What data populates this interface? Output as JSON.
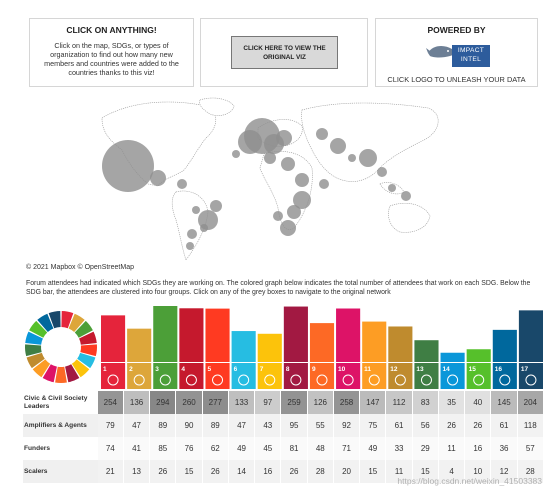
{
  "click_box": {
    "title": "CLICK ON ANYTHING!",
    "text": "Click on the map, SDGs, or types of organization to find out how many new members and countries were added to the countries thanks to this viz!"
  },
  "view_box": {
    "button_label": "CLICK HERE TO VIEW THE ORIGINAL VIZ"
  },
  "powered_box": {
    "title": "POWERED BY",
    "logo_text": "IMPACT INTEL",
    "caption": "CLICK LOGO TO UNLEASH YOUR DATA",
    "logo_color": "#2d5c9c"
  },
  "map": {
    "attribution": "© 2021 Mapbox © OpenStreetMap",
    "bubble_color": "#8f8f8f"
  },
  "description": "Forum attendees had indicated which SDGs they are working on. The colored graph below indicates the total number of attendees that work on each SDG.  Below the SDG bar, the attendees are clustered into four groups. Click on any of the grey boxes to navigate to the original network",
  "chart_data": {
    "type": "bar",
    "categories": [
      "1",
      "2",
      "3",
      "4",
      "5",
      "6",
      "7",
      "8",
      "9",
      "10",
      "11",
      "12",
      "13",
      "14",
      "15",
      "16",
      "17"
    ],
    "values": [
      428,
      306,
      514,
      493,
      490,
      284,
      259,
      509,
      357,
      491,
      371,
      326,
      200,
      85,
      117,
      295,
      474
    ],
    "colors": [
      "#e5243b",
      "#dda63a",
      "#4c9f38",
      "#c5192d",
      "#ff3a21",
      "#26bde2",
      "#fcc30b",
      "#a21942",
      "#fd6925",
      "#dd1367",
      "#fd9d24",
      "#bf8b2e",
      "#3f7e44",
      "#0a97d9",
      "#56c02b",
      "#00689d",
      "#19486a"
    ]
  },
  "table": {
    "rows": [
      {
        "label": "Civic & Civil Society Leaders",
        "values": [
          254,
          136,
          294,
          260,
          277,
          133,
          97,
          259,
          126,
          258,
          147,
          112,
          83,
          35,
          40,
          145,
          204
        ]
      },
      {
        "label": "Amplifiers & Agents",
        "values": [
          79,
          47,
          89,
          90,
          89,
          47,
          43,
          95,
          55,
          92,
          75,
          61,
          56,
          26,
          26,
          61,
          118
        ]
      },
      {
        "label": "Funders",
        "values": [
          74,
          41,
          85,
          76,
          62,
          49,
          45,
          81,
          48,
          71,
          49,
          33,
          29,
          11,
          16,
          36,
          57
        ]
      },
      {
        "label": "Scalers",
        "values": [
          21,
          13,
          26,
          15,
          26,
          14,
          16,
          26,
          28,
          20,
          15,
          11,
          15,
          4,
          10,
          12,
          28
        ]
      }
    ]
  },
  "watermark": "https://blog.csdn.net/weixin_41503383"
}
